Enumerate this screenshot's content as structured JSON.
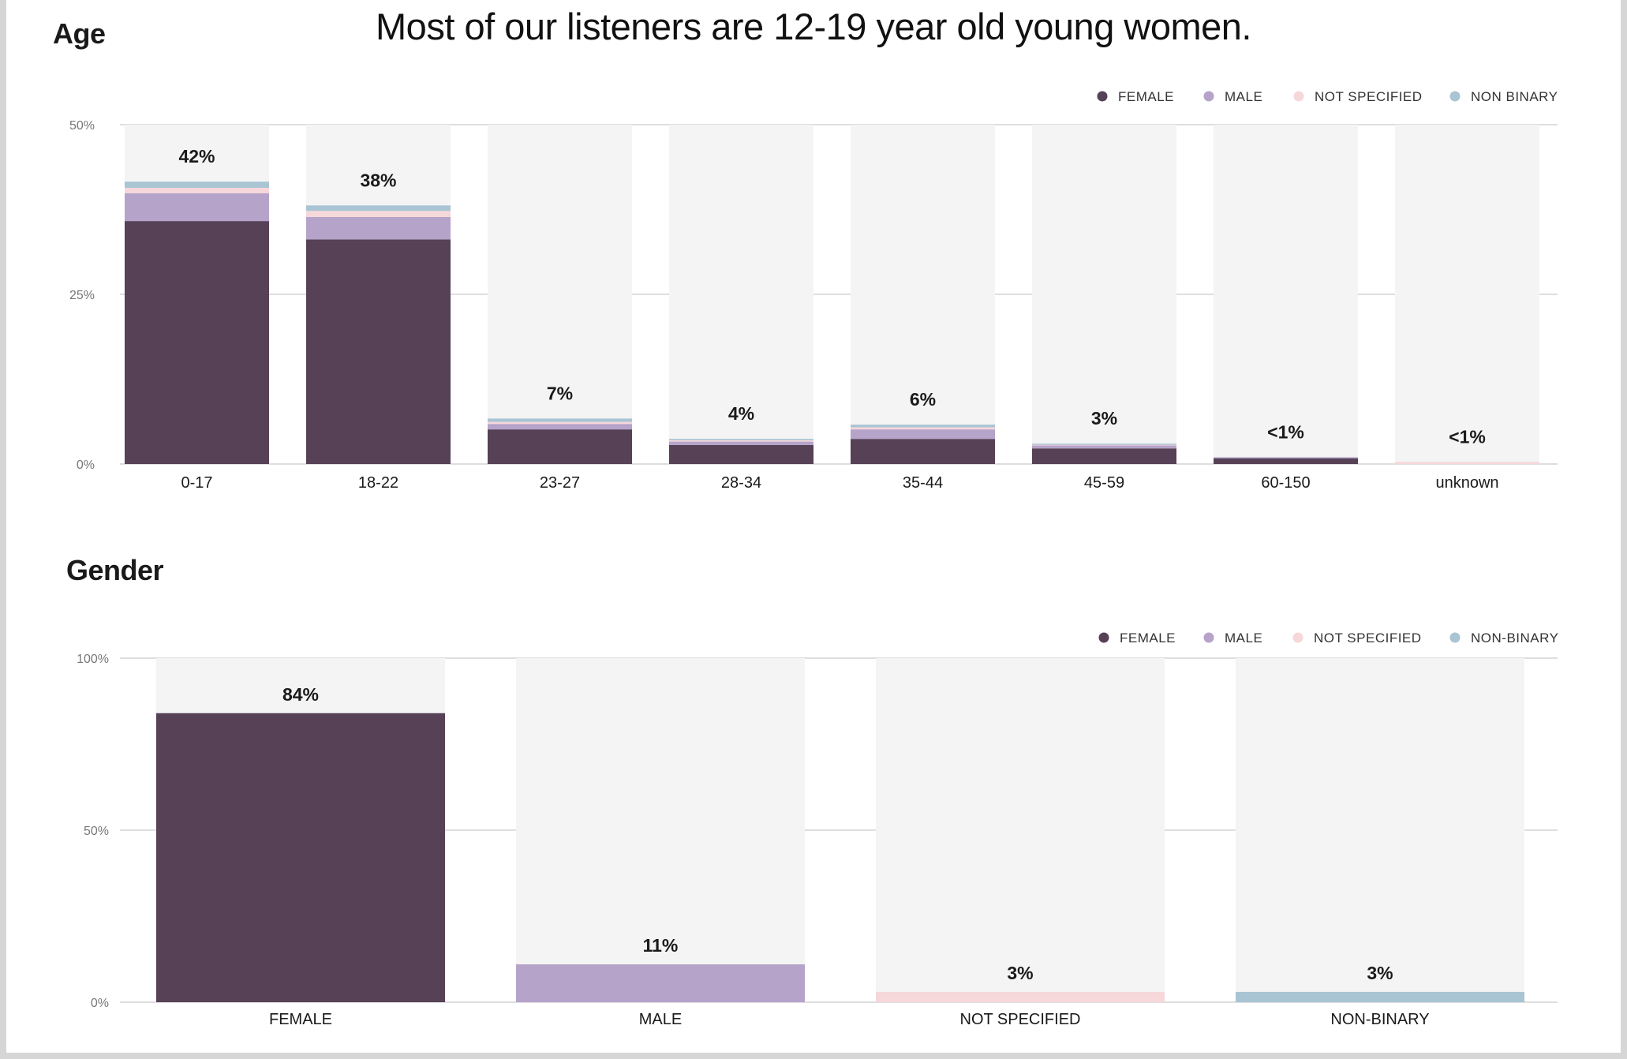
{
  "headline": "Most of our listeners are 12-19 year old young women.",
  "chart_data": [
    {
      "id": "age",
      "type": "bar",
      "stacked": true,
      "title": "Age",
      "categories": [
        "0-17",
        "18-22",
        "23-27",
        "28-34",
        "35-44",
        "45-59",
        "60-150",
        "unknown"
      ],
      "totals_labels": [
        "42%",
        "38%",
        "7%",
        "4%",
        "6%",
        "3%",
        "<1%",
        "<1%"
      ],
      "series": [
        {
          "name": "FEMALE",
          "color": "#574157",
          "values": [
            35.8,
            33.1,
            5.1,
            2.8,
            3.7,
            2.3,
            0.9,
            0.0
          ]
        },
        {
          "name": "MALE",
          "color": "#b6a3ca",
          "values": [
            4.1,
            3.3,
            0.8,
            0.5,
            1.4,
            0.5,
            0.1,
            0.0
          ]
        },
        {
          "name": "NOT SPECIFIED",
          "color": "#f6d7da",
          "values": [
            0.8,
            0.9,
            0.3,
            0.2,
            0.3,
            0.1,
            0.0,
            0.3
          ]
        },
        {
          "name": "NON BINARY",
          "color": "#a9c4d3",
          "values": [
            0.9,
            0.8,
            0.5,
            0.2,
            0.4,
            0.1,
            0.0,
            0.0
          ]
        }
      ],
      "yticks": [
        "50%",
        "25%",
        "0%"
      ],
      "ytick_values": [
        50,
        25,
        0
      ],
      "ylim": [
        0,
        50
      ],
      "legend_position": "top-right"
    },
    {
      "id": "gender",
      "type": "bar",
      "title": "Gender",
      "categories": [
        "FEMALE",
        "MALE",
        "NOT SPECIFIED",
        "NON-BINARY"
      ],
      "values": [
        84,
        11,
        3,
        3
      ],
      "labels": [
        "84%",
        "11%",
        "3%",
        "3%"
      ],
      "colors": [
        "#574157",
        "#b6a3ca",
        "#f6d7da",
        "#a9c4d3"
      ],
      "legend": [
        {
          "name": "FEMALE",
          "color": "#574157"
        },
        {
          "name": "MALE",
          "color": "#b6a3ca"
        },
        {
          "name": "NOT SPECIFIED",
          "color": "#f6d7da"
        },
        {
          "name": "NON-BINARY",
          "color": "#a9c4d3"
        }
      ],
      "yticks": [
        "100%",
        "50%",
        "0%"
      ],
      "ytick_values": [
        100,
        50,
        0
      ],
      "ylim": [
        0,
        100
      ],
      "legend_position": "top-right"
    }
  ]
}
